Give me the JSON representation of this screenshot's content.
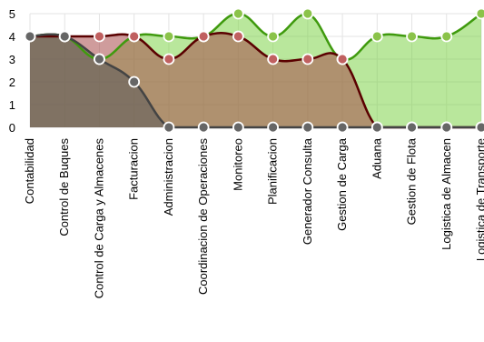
{
  "chart_data": {
    "type": "area",
    "title": "",
    "xlabel": "",
    "ylabel": "",
    "ylim": [
      0,
      5
    ],
    "yticks": [
      0,
      1,
      2,
      3,
      4,
      5
    ],
    "grid": true,
    "legend": "none",
    "categories": [
      "Contabilidad",
      "Control de Buques",
      "Control de Carga y Almacenes",
      "Facturacion",
      "Administracion",
      "Coordinacion de Operaciones",
      "Monitoreo",
      "Planificacion",
      "Generador Consulta",
      "Gestion de Carga",
      "Aduana",
      "Gestion de Flota",
      "Logistica de Almacen",
      "Logistica de Transporte"
    ],
    "series": [
      {
        "values": [
          4,
          4,
          3,
          4,
          4,
          4,
          5,
          4,
          5,
          3,
          4,
          4,
          4,
          5
        ],
        "line_color": "#3f9a0e",
        "fill_color": "#7fd34a",
        "fill_opacity": 0.55,
        "marker_color": "#8bc34a"
      },
      {
        "values": [
          4,
          4,
          4,
          4,
          3,
          4,
          4,
          3,
          3,
          3,
          0,
          0,
          0,
          0
        ],
        "line_color": "#5a0000",
        "fill_color": "#a84a4a",
        "fill_opacity": 0.55,
        "marker_color": "#c06060"
      },
      {
        "values": [
          4,
          4,
          3,
          2,
          0,
          0,
          0,
          0,
          0,
          0,
          0,
          0,
          0,
          0
        ],
        "line_color": "#444444",
        "fill_color": "#5a5a5a",
        "fill_opacity": 0.55,
        "marker_color": "#666666"
      }
    ]
  }
}
